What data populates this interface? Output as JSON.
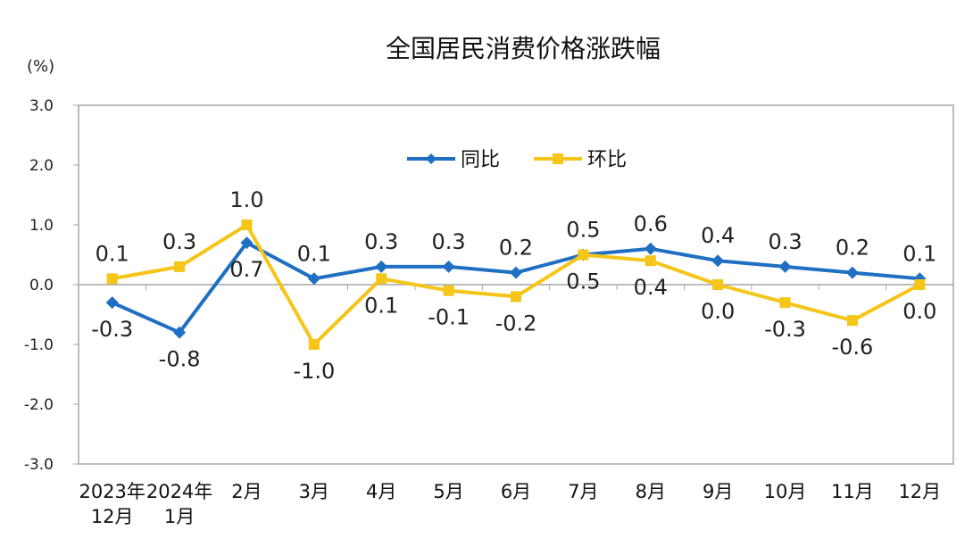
{
  "chart_data": {
    "type": "line",
    "title": "全国居民消费价格涨跌幅",
    "unit_label": "(%)",
    "ylim": [
      -3.0,
      3.0
    ],
    "yticks": [
      "3.0",
      "2.0",
      "1.0",
      "0.0",
      "-1.0",
      "-2.0",
      "-3.0"
    ],
    "categories": [
      [
        "2023年",
        "12月"
      ],
      [
        "2024年",
        "1月"
      ],
      [
        "2月"
      ],
      [
        "3月"
      ],
      [
        "4月"
      ],
      [
        "5月"
      ],
      [
        "6月"
      ],
      [
        "7月"
      ],
      [
        "8月"
      ],
      [
        "9月"
      ],
      [
        "10月"
      ],
      [
        "11月"
      ],
      [
        "12月"
      ]
    ],
    "legend_position": "top-center",
    "series": [
      {
        "name": "同比",
        "color": "#1f6fc3",
        "marker": "diamond",
        "values": [
          -0.3,
          -0.8,
          0.7,
          0.1,
          0.3,
          0.3,
          0.2,
          0.5,
          0.6,
          0.4,
          0.3,
          0.2,
          0.1
        ],
        "labels": [
          "-0.3",
          "-0.8",
          "0.7",
          "0.1",
          "0.3",
          "0.3",
          "0.2",
          "0.5",
          "0.6",
          "0.4",
          "0.3",
          "0.2",
          "0.1"
        ]
      },
      {
        "name": "环比",
        "color": "#f5c518",
        "marker": "square",
        "values": [
          0.1,
          0.3,
          1.0,
          -1.0,
          0.1,
          -0.1,
          -0.2,
          0.5,
          0.4,
          0.0,
          -0.3,
          -0.6,
          0.0
        ],
        "labels": [
          "0.1",
          "0.3",
          "1.0",
          "-1.0",
          "0.1",
          "-0.1",
          "-0.2",
          "0.5",
          "0.4",
          "0.0",
          "-0.3",
          "-0.6",
          "0.0"
        ]
      }
    ]
  }
}
